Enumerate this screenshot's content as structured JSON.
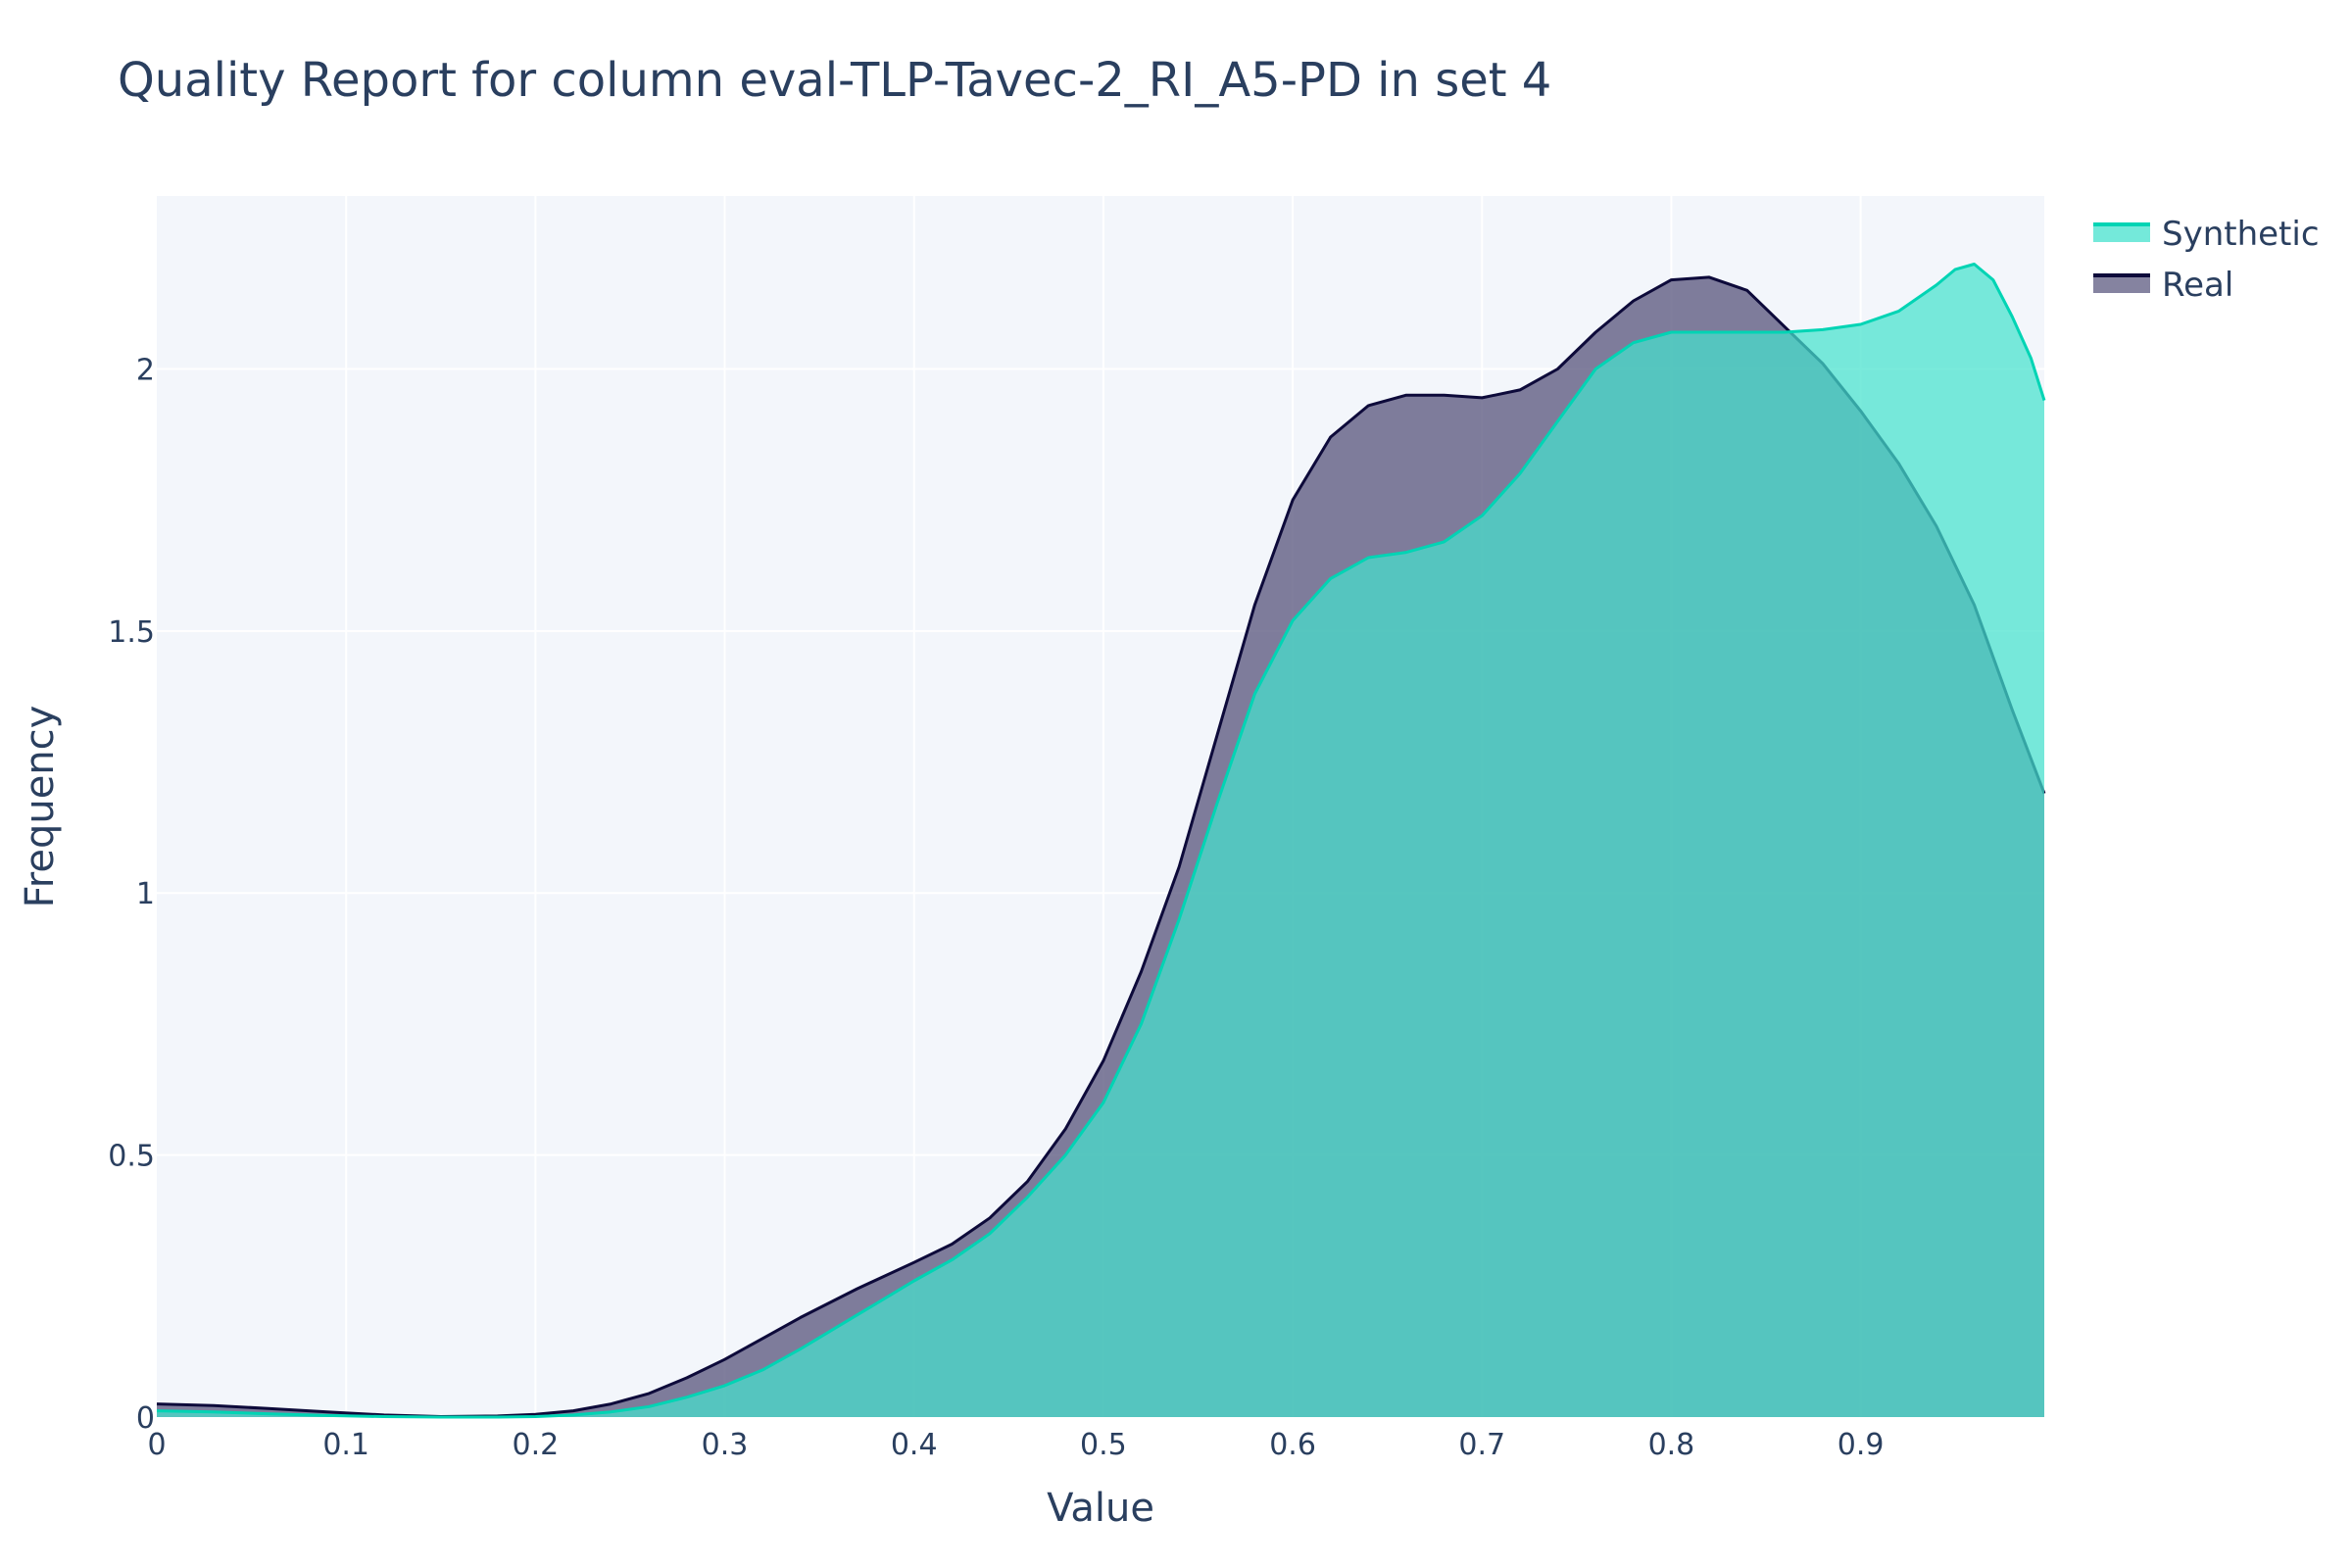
{
  "chart_data": {
    "type": "area",
    "title": "Quality Report for column eval-TLP-Tavec-2_RI_A5-PD in set 4",
    "xlabel": "Value",
    "ylabel": "Frequency",
    "xlim": [
      0,
      0.997
    ],
    "ylim": [
      0,
      2.33
    ],
    "grid": true,
    "legend_position": "top-right",
    "x_ticks": [
      0,
      0.1,
      0.2,
      0.3,
      0.4,
      0.5,
      0.6,
      0.7,
      0.8,
      0.9
    ],
    "x_tick_labels": [
      "0",
      "0.1",
      "0.2",
      "0.3",
      "0.4",
      "0.5",
      "0.6",
      "0.7",
      "0.8",
      "0.9"
    ],
    "y_ticks": [
      0,
      0.5,
      1,
      1.5,
      2
    ],
    "y_tick_labels": [
      "0",
      "0.5",
      "1",
      "1.5",
      "2"
    ],
    "series": [
      {
        "name": "Real",
        "line_color": "#0d0a3a",
        "fill_color": "#5c5a80",
        "x": [
          0,
          0.03,
          0.06,
          0.09,
          0.12,
          0.15,
          0.18,
          0.2,
          0.22,
          0.24,
          0.26,
          0.28,
          0.3,
          0.32,
          0.34,
          0.37,
          0.4,
          0.42,
          0.44,
          0.46,
          0.48,
          0.5,
          0.52,
          0.54,
          0.56,
          0.58,
          0.6,
          0.62,
          0.64,
          0.66,
          0.68,
          0.7,
          0.72,
          0.74,
          0.76,
          0.78,
          0.8,
          0.82,
          0.84,
          0.86,
          0.88,
          0.9,
          0.92,
          0.94,
          0.96,
          0.98,
          0.997
        ],
        "y": [
          0.025,
          0.022,
          0.016,
          0.01,
          0.004,
          0.001,
          0.002,
          0.005,
          0.012,
          0.025,
          0.045,
          0.075,
          0.11,
          0.15,
          0.19,
          0.245,
          0.295,
          0.33,
          0.38,
          0.45,
          0.55,
          0.68,
          0.85,
          1.05,
          1.3,
          1.55,
          1.75,
          1.87,
          1.93,
          1.95,
          1.95,
          1.945,
          1.96,
          2.0,
          2.07,
          2.13,
          2.17,
          2.175,
          2.15,
          2.08,
          2.01,
          1.92,
          1.82,
          1.7,
          1.55,
          1.35,
          1.19
        ]
      },
      {
        "name": "Synthetic",
        "line_color": "#00d4b4",
        "fill_color": "#45e2cd",
        "x": [
          0,
          0.03,
          0.06,
          0.09,
          0.12,
          0.15,
          0.18,
          0.2,
          0.22,
          0.24,
          0.26,
          0.28,
          0.3,
          0.32,
          0.34,
          0.37,
          0.4,
          0.42,
          0.44,
          0.46,
          0.48,
          0.5,
          0.52,
          0.54,
          0.56,
          0.58,
          0.6,
          0.62,
          0.64,
          0.66,
          0.68,
          0.7,
          0.72,
          0.74,
          0.76,
          0.78,
          0.8,
          0.82,
          0.84,
          0.86,
          0.88,
          0.9,
          0.92,
          0.94,
          0.95,
          0.96,
          0.97,
          0.98,
          0.99,
          0.997
        ],
        "y": [
          0.012,
          0.01,
          0.006,
          0.003,
          0.001,
          0.0,
          0.0,
          0.001,
          0.004,
          0.01,
          0.02,
          0.038,
          0.06,
          0.09,
          0.13,
          0.195,
          0.26,
          0.3,
          0.35,
          0.42,
          0.5,
          0.6,
          0.75,
          0.95,
          1.17,
          1.38,
          1.52,
          1.6,
          1.64,
          1.65,
          1.67,
          1.72,
          1.8,
          1.9,
          2.0,
          2.05,
          2.07,
          2.07,
          2.07,
          2.07,
          2.075,
          2.085,
          2.11,
          2.16,
          2.19,
          2.2,
          2.17,
          2.1,
          2.02,
          1.94
        ]
      }
    ]
  }
}
